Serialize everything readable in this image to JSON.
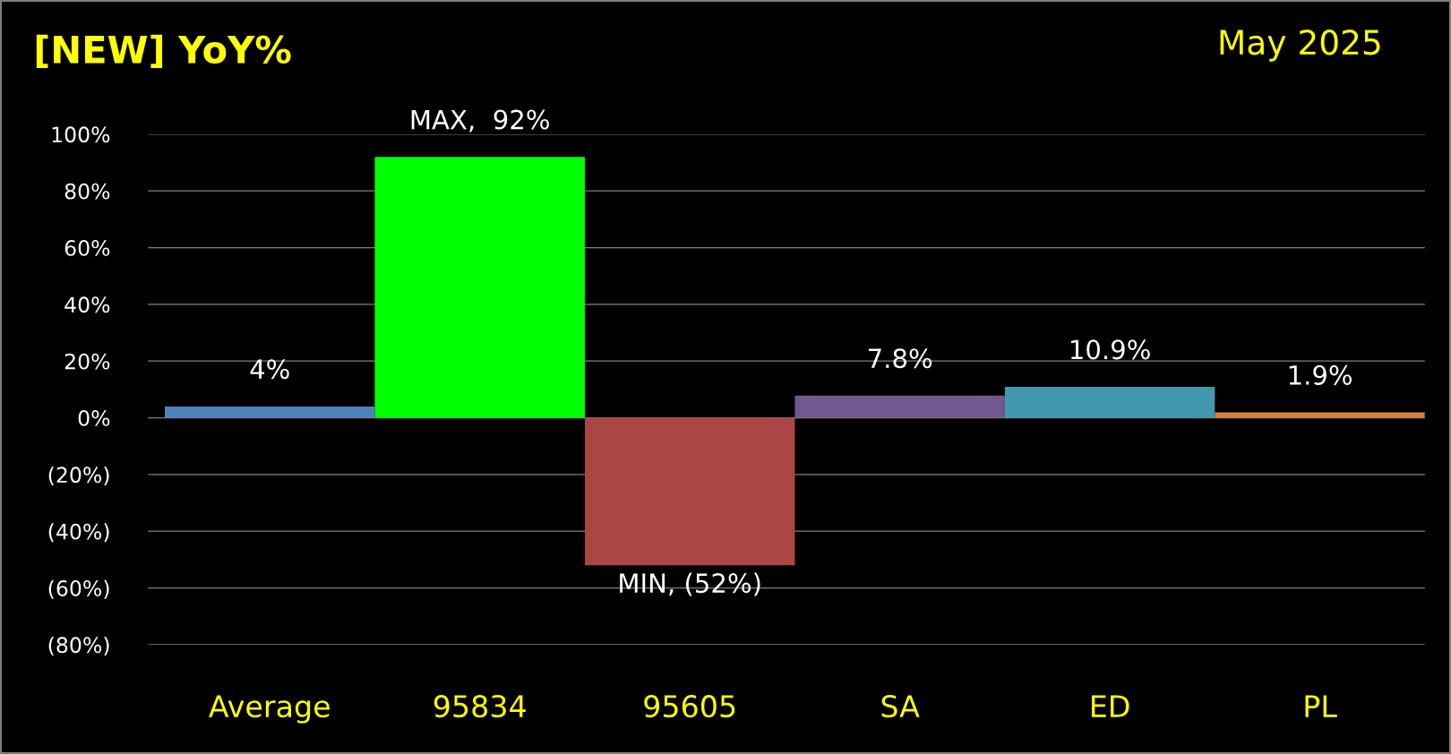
{
  "chart_data": {
    "type": "bar",
    "title": "[NEW] YoY%",
    "subtitle": "May 2025",
    "categories": [
      "Average",
      "95834",
      "95605",
      "SA",
      "ED",
      "PL"
    ],
    "values": [
      4,
      92,
      -52,
      7.8,
      10.9,
      1.9
    ],
    "colors": [
      "#4f81bd",
      "#00ff00",
      "#aa4644",
      "#72588f",
      "#4198af",
      "#d9813a"
    ],
    "value_labels": [
      "4%",
      "MAX,  92%",
      "MIN, (52%)",
      "7.8%",
      "10.9%",
      "1.9%"
    ],
    "ylim": [
      -80,
      100
    ],
    "yticks": [
      {
        "value": -80,
        "label": "(80%)"
      },
      {
        "value": -60,
        "label": "(60%)"
      },
      {
        "value": -40,
        "label": "(40%)"
      },
      {
        "value": -20,
        "label": "(20%)"
      },
      {
        "value": 0,
        "label": "0%"
      },
      {
        "value": 20,
        "label": "20%"
      },
      {
        "value": 40,
        "label": "40%"
      },
      {
        "value": 60,
        "label": "60%"
      },
      {
        "value": 80,
        "label": "80%"
      },
      {
        "value": 100,
        "label": "100%"
      }
    ],
    "grid": "y",
    "legend": false
  }
}
